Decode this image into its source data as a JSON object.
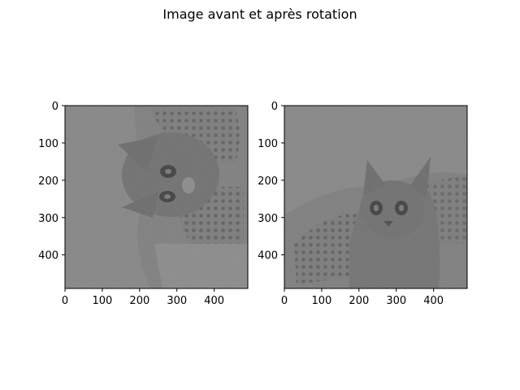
{
  "title": "Image avant et après rotation",
  "chart_data": [
    {
      "type": "image",
      "title": "",
      "content": "grayscale kitten photo (rotated)",
      "xlim": [
        0,
        490
      ],
      "ylim": [
        490,
        0
      ],
      "xticks": [
        0,
        100,
        200,
        300,
        400
      ],
      "yticks": [
        0,
        100,
        200,
        300,
        400
      ],
      "grid": false
    },
    {
      "type": "image",
      "title": "",
      "content": "grayscale kitten photo (upright)",
      "xlim": [
        0,
        490
      ],
      "ylim": [
        490,
        0
      ],
      "xticks": [
        0,
        100,
        200,
        300,
        400
      ],
      "yticks": [
        0,
        100,
        200,
        300,
        400
      ],
      "grid": false
    }
  ],
  "colors": {
    "background": "#808080",
    "frame": "#000000"
  }
}
